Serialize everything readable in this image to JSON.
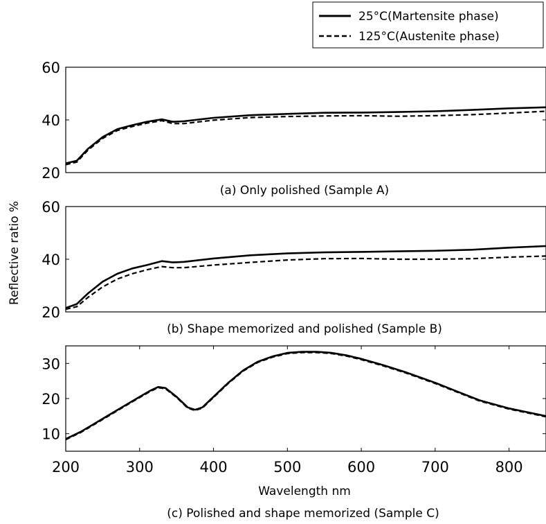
{
  "legend": {
    "entries": [
      {
        "label": "25°C(Martensite phase)",
        "style": "solid",
        "color": "#000000"
      },
      {
        "label": "125°C(Austenite phase)",
        "style": "dashed",
        "color": "#000000"
      }
    ]
  },
  "ylabel": "Reflective ratio  %",
  "xlabel": "Wavelength  nm",
  "captions": [
    "(a) Only polished (Sample A)",
    "(b) Shape memorized and polished (Sample B)",
    "(c) Polished and shape memorized (Sample C)"
  ],
  "chart_data": [
    {
      "type": "line",
      "title": "(a) Only polished (Sample A)",
      "xlim": [
        200,
        850
      ],
      "ylim": [
        20,
        60
      ],
      "yticks": [
        20,
        40,
        60
      ],
      "xticks": [],
      "grid": false,
      "series": [
        {
          "name": "25°C(Martensite phase)",
          "style": "solid",
          "x": [
            200,
            215,
            230,
            250,
            270,
            290,
            310,
            330,
            345,
            360,
            400,
            450,
            500,
            550,
            600,
            650,
            700,
            750,
            800,
            850
          ],
          "y": [
            23.5,
            24.5,
            29,
            33.5,
            36.5,
            38,
            39.3,
            40.2,
            39.3,
            39.5,
            40.8,
            41.8,
            42.3,
            42.7,
            42.8,
            43,
            43.3,
            43.8,
            44.4,
            44.8
          ]
        },
        {
          "name": "125°C(Austenite phase)",
          "style": "dashed",
          "x": [
            200,
            215,
            230,
            250,
            270,
            290,
            310,
            330,
            345,
            360,
            400,
            450,
            500,
            550,
            600,
            650,
            700,
            750,
            800,
            850
          ],
          "y": [
            23,
            24,
            28.5,
            33,
            36,
            37.5,
            38.8,
            39.7,
            38.6,
            38.6,
            39.9,
            40.9,
            41.3,
            41.5,
            41.6,
            41.4,
            41.6,
            42,
            42.6,
            43.3
          ]
        }
      ]
    },
    {
      "type": "line",
      "title": "(b) Shape memorized and polished (Sample B)",
      "xlim": [
        200,
        850
      ],
      "ylim": [
        20,
        60
      ],
      "yticks": [
        20,
        40,
        60
      ],
      "xticks": [],
      "grid": false,
      "series": [
        {
          "name": "25°C(Martensite phase)",
          "style": "solid",
          "x": [
            200,
            215,
            230,
            250,
            270,
            290,
            310,
            330,
            345,
            360,
            400,
            450,
            500,
            550,
            600,
            650,
            700,
            750,
            800,
            850
          ],
          "y": [
            21.5,
            23,
            27,
            31.5,
            34.5,
            36.5,
            37.8,
            39.3,
            38.8,
            39,
            40.3,
            41.5,
            42.2,
            42.6,
            42.8,
            43,
            43.2,
            43.6,
            44.4,
            45
          ]
        },
        {
          "name": "125°C(Austenite phase)",
          "style": "dashed",
          "x": [
            200,
            215,
            230,
            250,
            270,
            290,
            310,
            330,
            345,
            360,
            400,
            450,
            500,
            550,
            600,
            650,
            700,
            750,
            800,
            850
          ],
          "y": [
            21,
            22,
            25.5,
            29.5,
            32.5,
            34.5,
            36,
            37.2,
            36.8,
            36.8,
            37.8,
            38.8,
            39.7,
            40.2,
            40.3,
            40,
            40,
            40.2,
            40.8,
            41.2
          ]
        }
      ]
    },
    {
      "type": "line",
      "title": "(c) Polished and shape memorized (Sample C)",
      "xlim": [
        200,
        850
      ],
      "ylim": [
        5,
        35
      ],
      "yticks": [
        10,
        20,
        30
      ],
      "xticks": [
        200,
        300,
        400,
        500,
        600,
        700,
        800
      ],
      "xlabel": "Wavelength  nm",
      "grid": false,
      "series": [
        {
          "name": "25°C(Martensite phase)",
          "style": "solid",
          "x": [
            200,
            220,
            240,
            260,
            280,
            300,
            315,
            325,
            335,
            350,
            365,
            375,
            385,
            400,
            420,
            440,
            460,
            480,
            500,
            520,
            540,
            560,
            580,
            600,
            630,
            660,
            700,
            730,
            760,
            800,
            850
          ],
          "y": [
            8.5,
            10.5,
            13,
            15.5,
            18,
            20.5,
            22.3,
            23.3,
            23,
            20.5,
            17.5,
            16.8,
            17.5,
            20.5,
            24.5,
            28,
            30.5,
            32,
            33,
            33.3,
            33.3,
            33,
            32.3,
            31.3,
            29.5,
            27.5,
            24.5,
            22,
            19.5,
            17.2,
            15
          ]
        },
        {
          "name": "125°C(Austenite phase)",
          "style": "dashed",
          "x": [
            200,
            220,
            240,
            260,
            280,
            300,
            315,
            325,
            335,
            350,
            365,
            375,
            385,
            400,
            420,
            440,
            460,
            480,
            500,
            520,
            540,
            560,
            580,
            600,
            630,
            660,
            700,
            730,
            760,
            800,
            850
          ],
          "y": [
            8.3,
            10.3,
            12.8,
            15.3,
            17.8,
            20.3,
            22.1,
            23.1,
            22.8,
            20.3,
            17.3,
            16.6,
            17.3,
            20.3,
            24.3,
            27.8,
            30.3,
            31.8,
            32.8,
            33.1,
            33.1,
            32.8,
            32.1,
            31.1,
            29.3,
            27.3,
            24.3,
            21.8,
            19.3,
            17,
            14.8
          ]
        }
      ]
    }
  ]
}
